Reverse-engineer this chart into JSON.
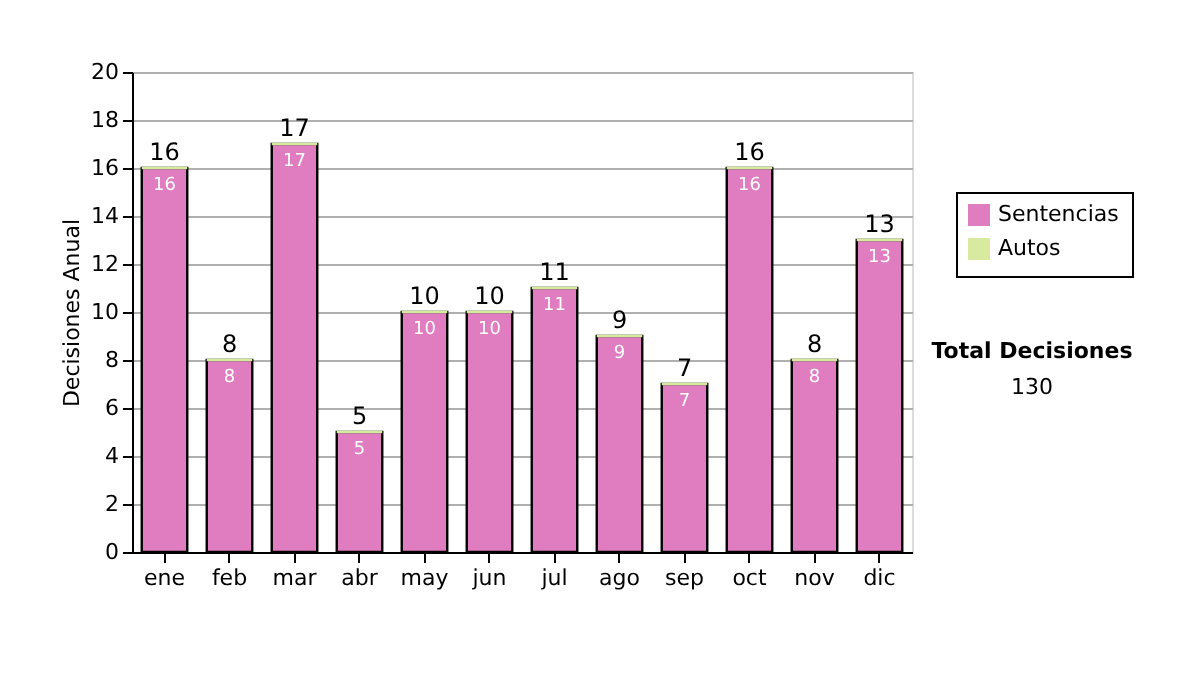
{
  "chart_data": {
    "type": "bar",
    "stacked": true,
    "ylabel": "Decisiones Anual",
    "categories": [
      "ene",
      "feb",
      "mar",
      "abr",
      "may",
      "jun",
      "jul",
      "ago",
      "sep",
      "oct",
      "nov",
      "dic"
    ],
    "series": [
      {
        "name": "Sentencias",
        "color": "#e07cc0",
        "values": [
          16,
          8,
          17,
          5,
          10,
          10,
          11,
          9,
          7,
          16,
          8,
          13
        ],
        "value_labels": [
          "16",
          "8",
          "17",
          "5",
          "10",
          "10",
          "11",
          "9",
          "7",
          "16",
          "8",
          "13"
        ]
      },
      {
        "name": "Autos",
        "color": "#d8eaa0",
        "values": [
          0,
          0,
          0,
          0,
          0,
          0,
          0,
          0,
          0,
          0,
          0,
          0
        ]
      }
    ],
    "totals": [
      "16",
      "8",
      "17",
      "5",
      "10",
      "10",
      "11",
      "9",
      "7",
      "16",
      "8",
      "13"
    ],
    "ylim": [
      0,
      20
    ],
    "yticks": [
      0,
      2,
      4,
      6,
      8,
      10,
      12,
      14,
      16,
      18,
      20
    ],
    "grid": "y",
    "legend": "right",
    "annotations": [
      "Total Decisiones",
      "130"
    ]
  }
}
